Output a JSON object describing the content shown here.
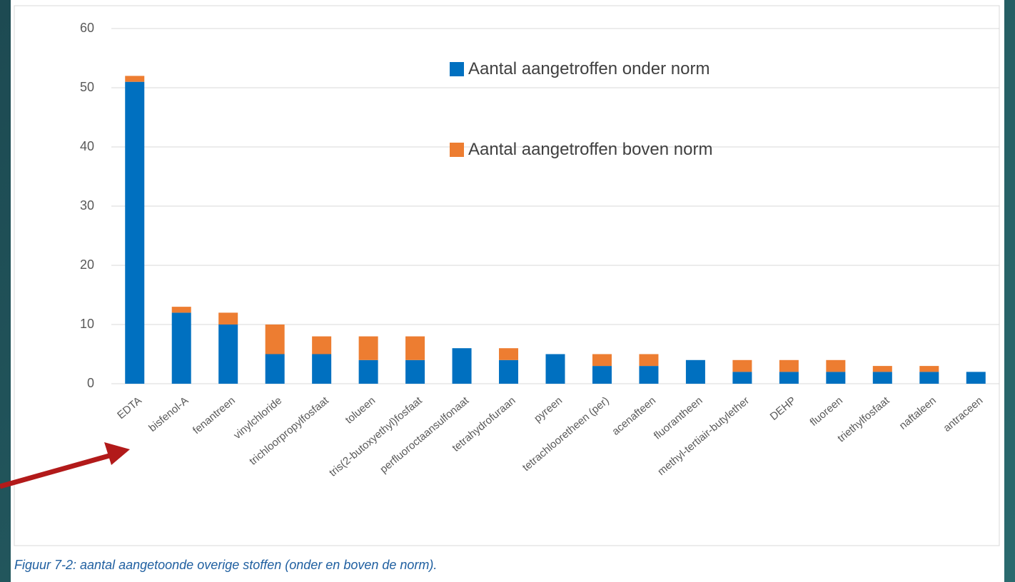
{
  "chart_data": {
    "type": "stacked-bar",
    "caption": "Figuur 7-2: aantal aangetoonde overige stoffen (onder en boven de norm).",
    "categories": [
      "EDTA",
      "bisfenol-A",
      "fenantreen",
      "vinylchloride",
      "trichloorpropylfosfaat",
      "tolueen",
      "tris(2-butoxyethyl)fosfaat",
      "perfluoroctaansulfonaat",
      "tetrahydrofuraan",
      "pyreen",
      "tetrachlooretheen (per)",
      "acenafteen",
      "fluorantheen",
      "methyl-tertiair-butylether",
      "DEHP",
      "fluoreen",
      "triethylfosfaat",
      "naftaleen",
      "antraceen"
    ],
    "series": [
      {
        "name": "Aantal aangetroffen onder norm",
        "color": "#0070c0",
        "values": [
          51,
          12,
          10,
          5,
          5,
          4,
          4,
          6,
          4,
          5,
          3,
          3,
          4,
          2,
          2,
          2,
          2,
          2,
          2
        ]
      },
      {
        "name": "Aantal aangetroffen boven norm",
        "color": "#ed7d31",
        "values": [
          1,
          1,
          2,
          5,
          3,
          4,
          4,
          0,
          2,
          0,
          2,
          2,
          0,
          2,
          2,
          2,
          1,
          1,
          0
        ]
      }
    ],
    "ylim": [
      0,
      60
    ],
    "yticks": [
      0,
      10,
      20,
      30,
      40,
      50,
      60
    ],
    "grid": true
  }
}
